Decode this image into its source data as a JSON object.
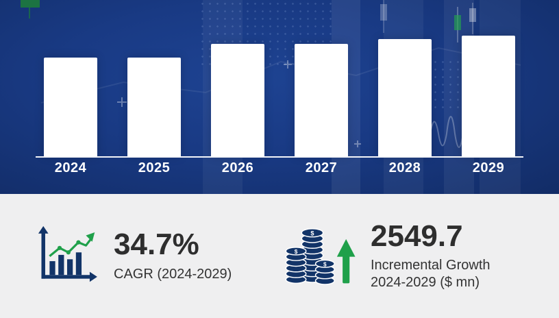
{
  "chart_data": {
    "type": "bar",
    "title": "",
    "xlabel": "",
    "ylabel": "",
    "categories": [
      "2024",
      "2025",
      "2026",
      "2027",
      "2028",
      "2029"
    ],
    "values": [
      82,
      82,
      93,
      93,
      97,
      100
    ],
    "value_note": "relative bar heights, percent of tallest (2029) bar; no y-axis shown",
    "bar_color": "#ffffff",
    "background_color": "#1a3a84",
    "grid": false,
    "legend": "none",
    "axis_line_color": "#ffffff",
    "tick_label_color": "#ffffff"
  },
  "stats": {
    "cagr": {
      "value": "34.7%",
      "label": "CAGR (2024-2029)"
    },
    "incremental": {
      "value": "2549.7",
      "label_line1": "Incremental Growth",
      "label_line2": "2024-2029 ($ mn)"
    }
  },
  "icons": {
    "growth_trend_icon": "bar chart with ascending green arrow line",
    "coins_stack_icon": "stacks of dollar coins with green up arrow",
    "dollar_sign": "$"
  },
  "colors": {
    "navy": "#16357B",
    "dark_navy_icon": "#123468",
    "green_accent": "#1FA04A",
    "stats_background": "#EFEFF0",
    "text_dark": "#2E2E2E"
  }
}
